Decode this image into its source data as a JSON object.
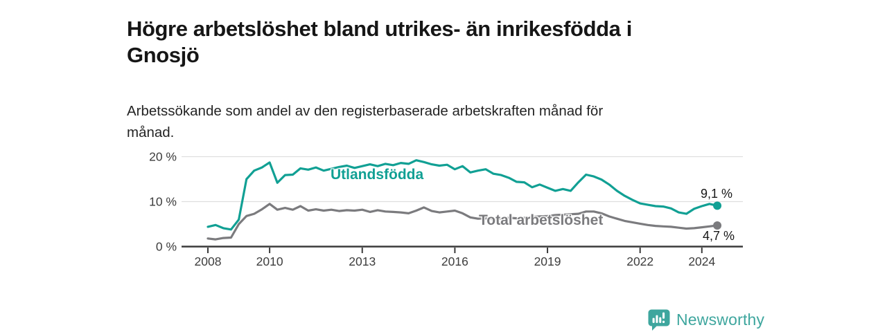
{
  "header": {
    "title": "Högre arbetslöshet bland utrikes- än inrikesfödda i\nGnosjö",
    "subtitle": "Arbetssökande som andel av den registerbaserade arbetskraften månad för\nmånad."
  },
  "chart_data": {
    "type": "line",
    "title": "Högre arbetslöshet bland utrikes- än inrikesfödda i Gnosjö",
    "xlabel": "",
    "ylabel": "Arbetssökande som andel av den registerbaserade arbetskraften (%)",
    "x_unit": "year (monthly data)",
    "x_start": 2008,
    "x_step": 0.25,
    "x_end": 2024.5,
    "xlim": [
      2007.15,
      2025.3
    ],
    "ylim": [
      0,
      21
    ],
    "grid": "horizontal",
    "legend_position": "inline-labels",
    "x_ticks": [
      2008,
      2010,
      2013,
      2016,
      2019,
      2022,
      2024
    ],
    "x_tick_labels": [
      "2008",
      "2010",
      "2013",
      "2016",
      "2019",
      "2022",
      "2024"
    ],
    "y_ticks": [
      0,
      10,
      20
    ],
    "y_tick_labels": [
      "0 %",
      "10 %",
      "20 %"
    ],
    "series": [
      {
        "name": "Utlandsfödda",
        "slug": "utlandsfodda",
        "color": "#11a094",
        "end_label": "9,1 %",
        "end_value": 9.1,
        "values": [
          4.4,
          4.8,
          4.1,
          3.8,
          6.0,
          15.0,
          16.9,
          17.6,
          18.7,
          14.2,
          15.9,
          16.0,
          17.4,
          17.1,
          17.6,
          16.9,
          17.3,
          17.7,
          18.0,
          17.5,
          17.9,
          18.3,
          17.9,
          18.4,
          18.1,
          18.6,
          18.4,
          19.2,
          18.8,
          18.3,
          18.0,
          18.2,
          17.2,
          17.9,
          16.5,
          16.9,
          17.2,
          16.2,
          15.9,
          15.3,
          14.4,
          14.3,
          13.2,
          13.8,
          13.1,
          12.4,
          12.8,
          12.4,
          14.3,
          16.0,
          15.6,
          14.9,
          13.8,
          12.4,
          11.3,
          10.4,
          9.6,
          9.3,
          9.0,
          8.9,
          8.5,
          7.6,
          7.3,
          8.4,
          9.0,
          9.5,
          9.1
        ]
      },
      {
        "name": "Total arbetslöshet",
        "slug": "total-arbetsloshet",
        "color": "#7b7b7e",
        "end_label": "4,7 %",
        "end_value": 4.7,
        "values": [
          1.8,
          1.6,
          1.9,
          2.0,
          5.0,
          6.8,
          7.3,
          8.3,
          9.5,
          8.2,
          8.6,
          8.2,
          9.0,
          8.0,
          8.3,
          8.0,
          8.2,
          7.9,
          8.1,
          8.0,
          8.2,
          7.7,
          8.1,
          7.8,
          7.7,
          7.6,
          7.4,
          8.0,
          8.7,
          7.9,
          7.6,
          7.8,
          8.0,
          7.4,
          6.5,
          6.2,
          6.3,
          6.1,
          6.2,
          6.4,
          6.3,
          6.4,
          6.6,
          6.7,
          6.8,
          7.0,
          7.1,
          7.2,
          7.3,
          7.8,
          7.8,
          7.4,
          6.7,
          6.2,
          5.7,
          5.4,
          5.1,
          4.8,
          4.6,
          4.5,
          4.4,
          4.2,
          4.0,
          4.1,
          4.3,
          4.5,
          4.7
        ]
      }
    ],
    "colors": {
      "axis": "#3a3a3a",
      "tick_label": "#3d3d3d",
      "gridline": "#dedede",
      "end_label_text": "#161616"
    }
  },
  "branding": {
    "logo_text": "Newsworthy",
    "logo_color": "#3ea69e",
    "logo_icon": "bar-chart-speech-bubble-icon"
  }
}
